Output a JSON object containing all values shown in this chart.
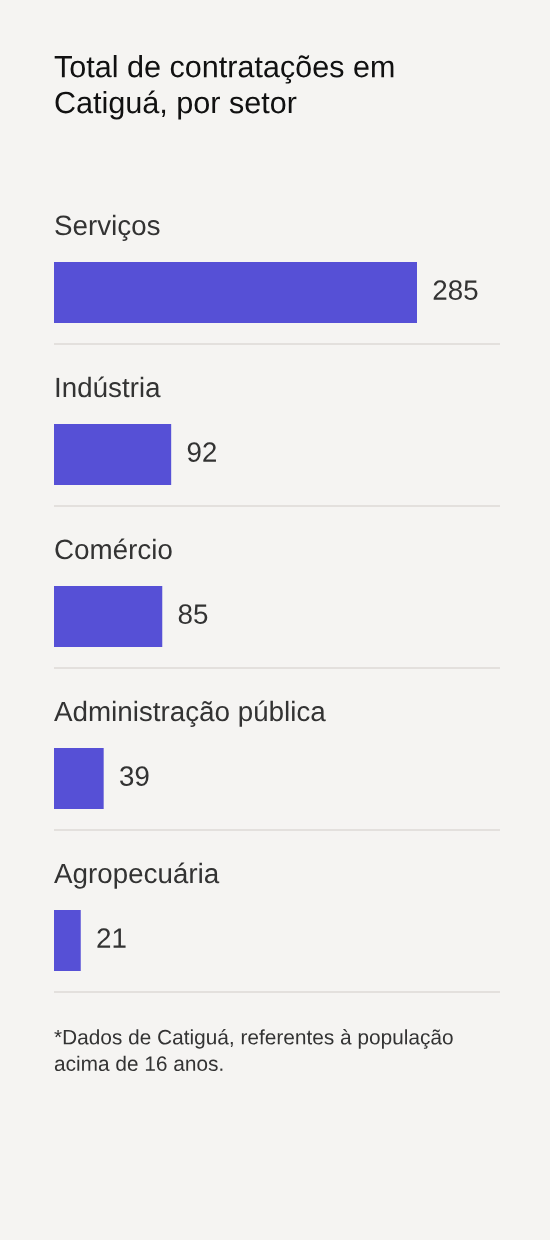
{
  "chart_data": {
    "type": "bar",
    "orientation": "horizontal",
    "title": "Total de contratações em Catiguá, por setor",
    "categories": [
      "Serviços",
      "Indústria",
      "Comércio",
      "Administração pública",
      "Agropecuária"
    ],
    "values": [
      285,
      92,
      85,
      39,
      21
    ],
    "color": "#5650d6",
    "data_labels": true,
    "grid": "y",
    "annotations": [
      "*Dados de Catiguá, referentes à população acima de 16 anos."
    ]
  }
}
